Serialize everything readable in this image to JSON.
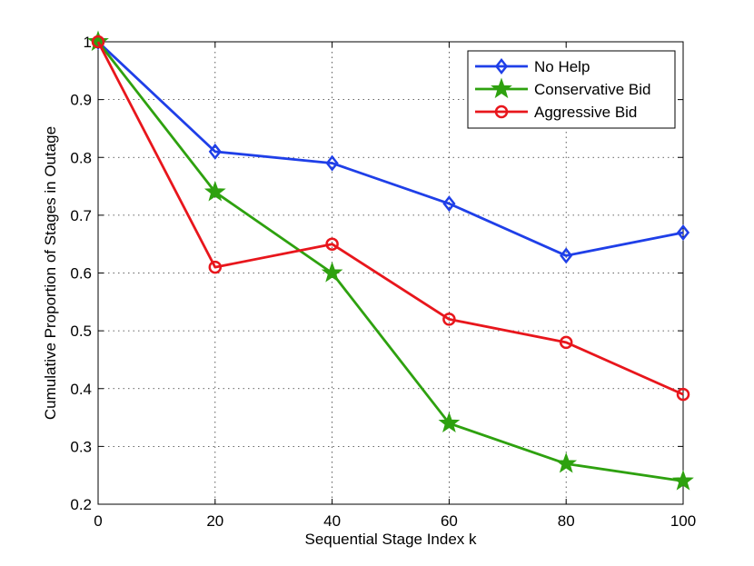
{
  "chart_data": {
    "type": "line",
    "title": "",
    "xlabel": "Sequential Stage Index k",
    "ylabel": "Cumulative Proportion of Stages in Outage",
    "x": [
      0,
      20,
      40,
      60,
      80,
      100
    ],
    "xlim": [
      0,
      100
    ],
    "ylim": [
      0.2,
      1
    ],
    "xticks": [
      "0",
      "20",
      "40",
      "60",
      "80",
      "100"
    ],
    "yticks": [
      "0.2",
      "0.3",
      "0.4",
      "0.5",
      "0.6",
      "0.7",
      "0.8",
      "0.9",
      "1"
    ],
    "grid": true,
    "legend_position": "top-right",
    "series": [
      {
        "name": "No Help",
        "color": "#1f3fe8",
        "marker": "diamond",
        "values": [
          1.0,
          0.81,
          0.79,
          0.72,
          0.63,
          0.67
        ]
      },
      {
        "name": "Conservative Bid",
        "color": "#2ea10f",
        "marker": "star",
        "values": [
          1.0,
          0.74,
          0.6,
          0.34,
          0.27,
          0.24
        ]
      },
      {
        "name": "Aggressive Bid",
        "color": "#e8161c",
        "marker": "circle",
        "values": [
          1.0,
          0.61,
          0.65,
          0.52,
          0.48,
          0.39
        ]
      }
    ]
  }
}
